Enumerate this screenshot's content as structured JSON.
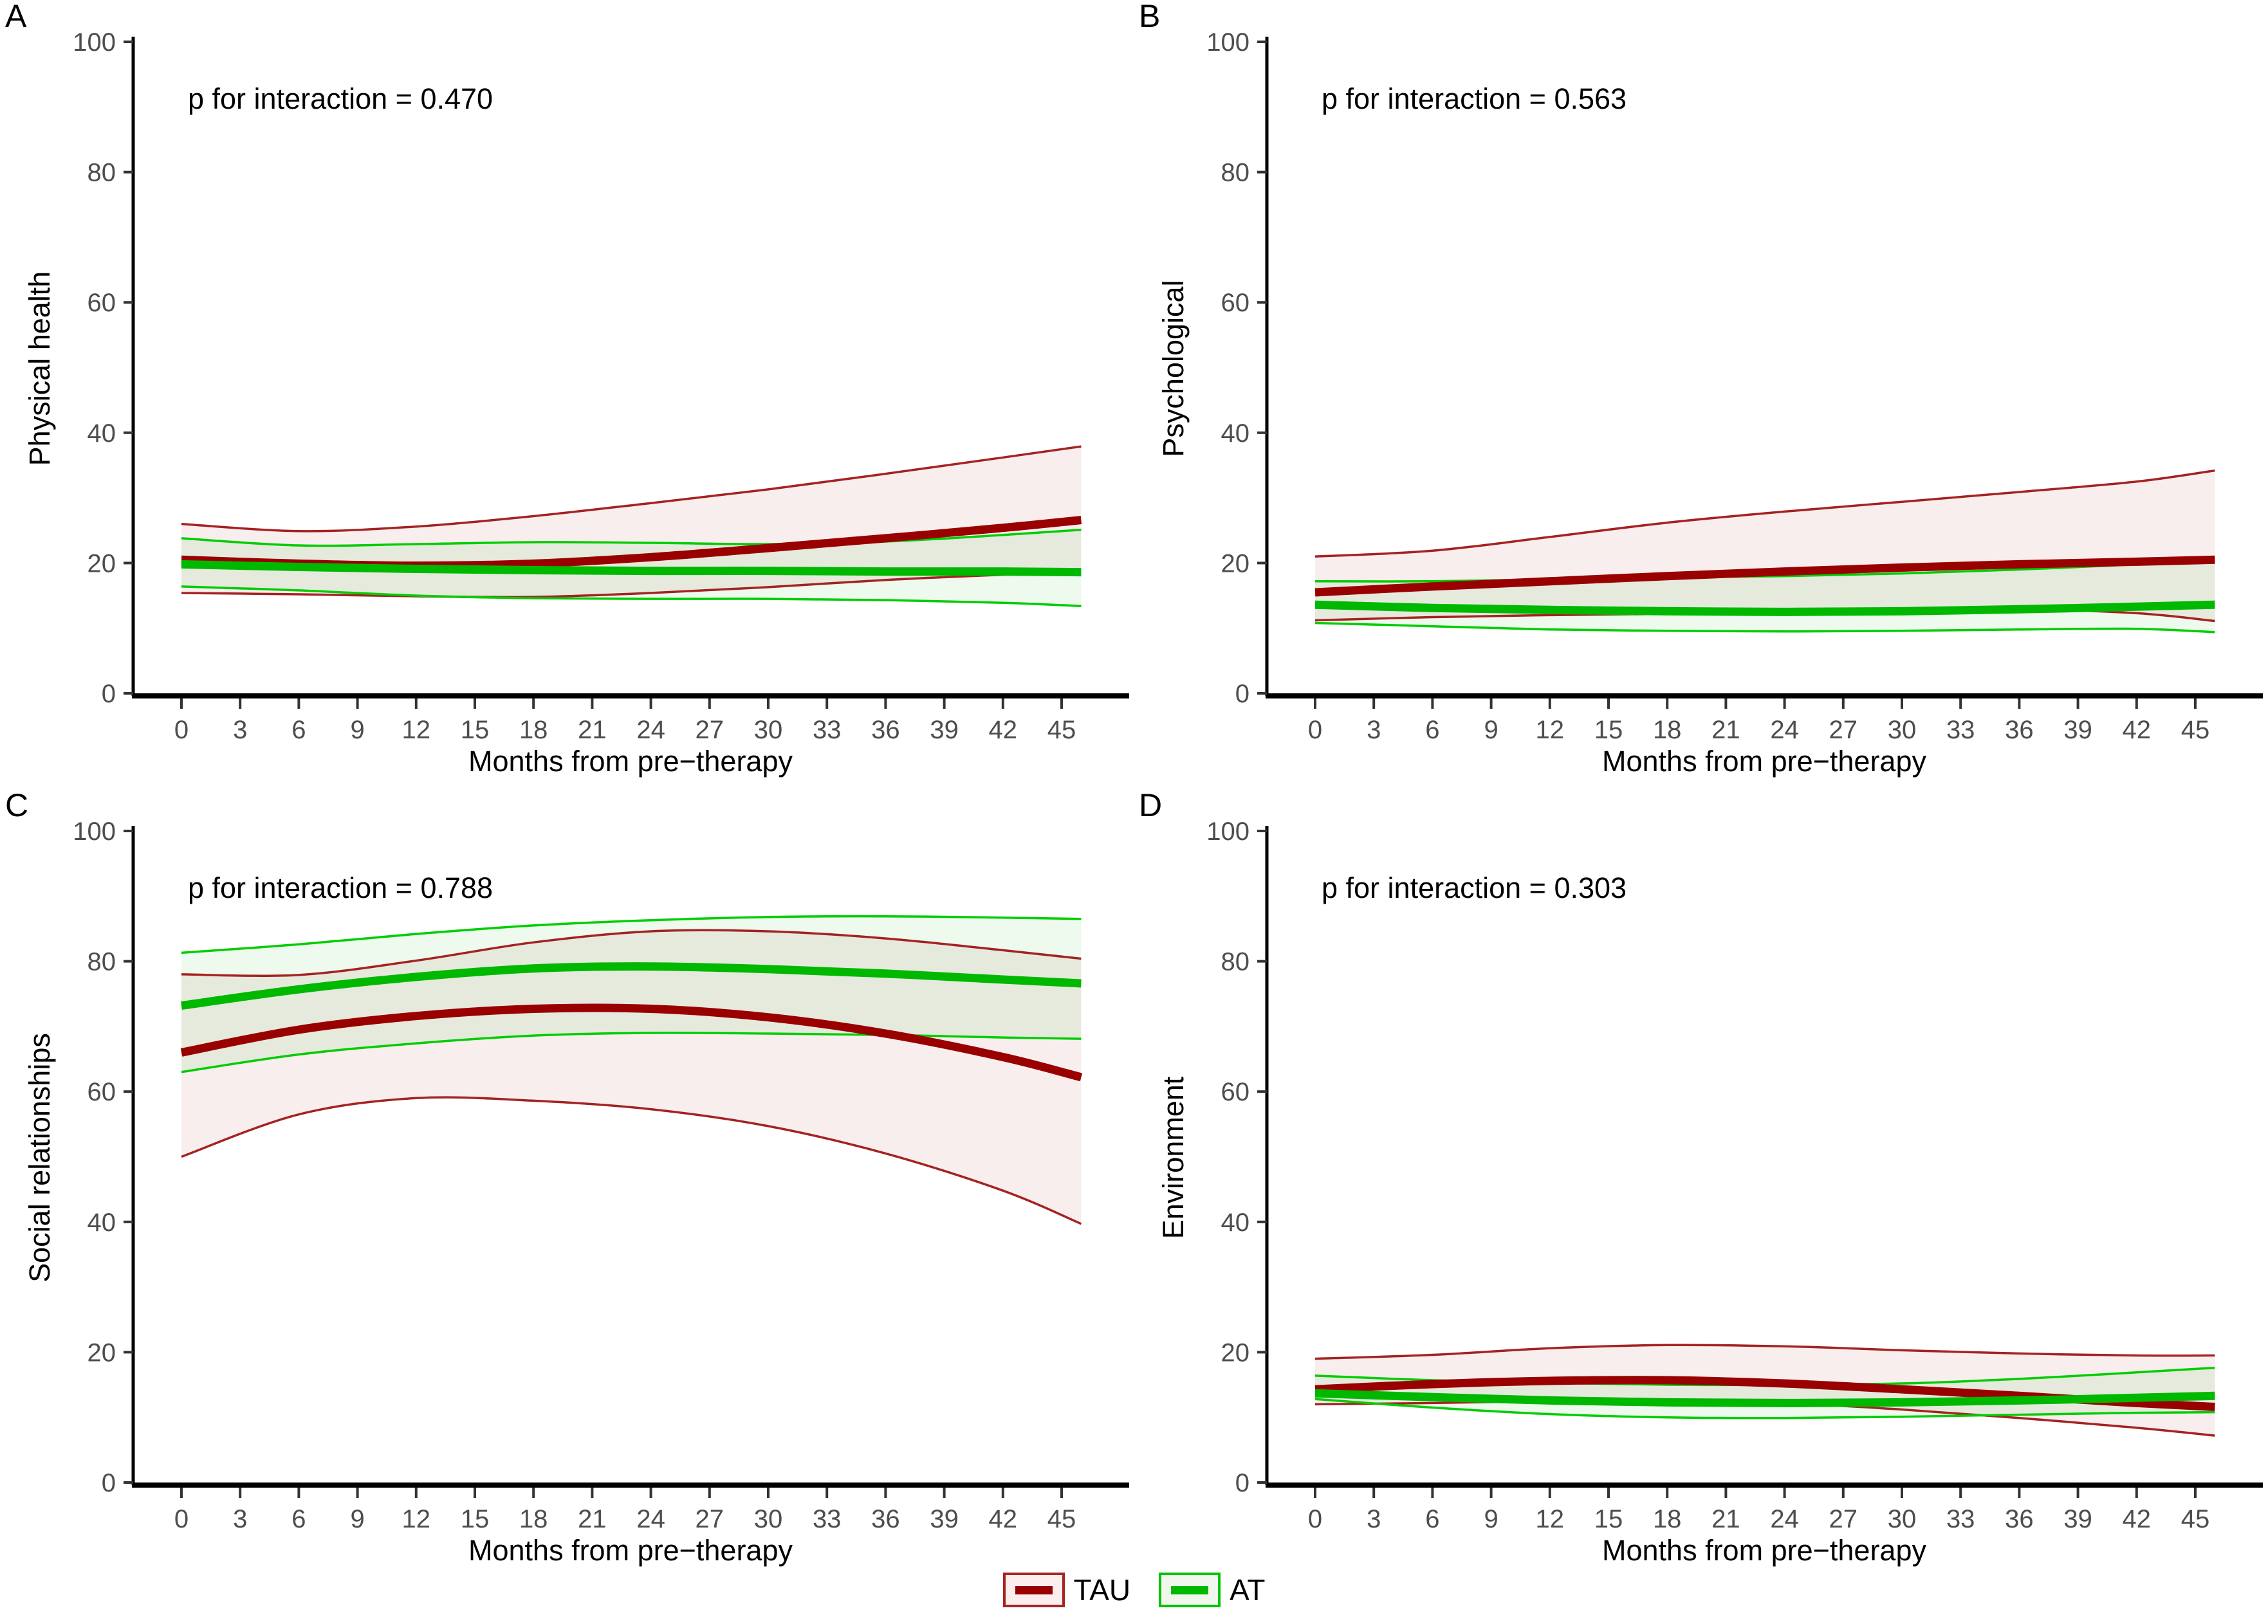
{
  "figure": {
    "x_title": "Months from pre−therapy",
    "x_ticks": [
      0,
      3,
      6,
      9,
      12,
      15,
      18,
      21,
      24,
      27,
      30,
      33,
      36,
      39,
      42,
      45
    ],
    "y_ticks": [
      0,
      20,
      40,
      60,
      80,
      100
    ],
    "legend": [
      {
        "label": "TAU",
        "key": "tau"
      },
      {
        "label": "AT",
        "key": "at"
      }
    ]
  },
  "colors": {
    "tau_line": "#990000",
    "tau_thin": "#a52222",
    "tau_fill": "rgba(153,0,0,0.065)",
    "at_line": "#00b800",
    "at_thin": "#00cd00",
    "at_fill": "rgba(0,180,0,0.07)",
    "axis": "#000000",
    "tick_text": "#4d4d4d"
  },
  "chart_data": [
    {
      "type": "line",
      "panel_label": "A",
      "ylabel": "Physical health",
      "p_text": "p for interaction = 0.470",
      "xlabel": "Months from pre−therapy",
      "xlim": [
        0,
        46
      ],
      "ylim": [
        0,
        100
      ],
      "x": [
        0,
        6,
        12,
        18,
        24,
        30,
        36,
        42,
        46
      ],
      "series": [
        {
          "name": "TAU",
          "center": [
            20.5,
            19.9,
            19.6,
            19.9,
            20.9,
            22.3,
            23.8,
            25.4,
            26.6
          ],
          "upper": [
            26.0,
            24.9,
            25.6,
            27.2,
            29.2,
            31.3,
            33.7,
            36.2,
            37.9
          ],
          "lower": [
            15.4,
            15.2,
            14.9,
            14.8,
            15.4,
            16.3,
            17.4,
            18.2,
            18.5
          ]
        },
        {
          "name": "AT",
          "center": [
            19.8,
            19.4,
            19.1,
            18.9,
            18.8,
            18.8,
            18.7,
            18.7,
            18.6
          ],
          "upper": [
            23.8,
            22.7,
            22.9,
            23.2,
            23.1,
            22.9,
            23.3,
            24.3,
            25.1
          ],
          "lower": [
            16.4,
            15.8,
            15.0,
            14.6,
            14.5,
            14.5,
            14.3,
            13.9,
            13.4
          ]
        }
      ]
    },
    {
      "type": "line",
      "panel_label": "B",
      "ylabel": "Psychological",
      "p_text": "p for interaction = 0.563",
      "xlabel": "Months from pre−therapy",
      "xlim": [
        0,
        46
      ],
      "ylim": [
        0,
        100
      ],
      "x": [
        0,
        6,
        12,
        18,
        24,
        30,
        36,
        42,
        46
      ],
      "series": [
        {
          "name": "TAU",
          "center": [
            15.5,
            16.4,
            17.2,
            18.0,
            18.7,
            19.3,
            19.8,
            20.2,
            20.5
          ],
          "upper": [
            21.0,
            21.9,
            24.0,
            26.2,
            27.9,
            29.4,
            30.9,
            32.5,
            34.2
          ],
          "lower": [
            11.2,
            11.7,
            12.0,
            12.2,
            12.4,
            12.7,
            12.9,
            12.3,
            11.1
          ]
        },
        {
          "name": "AT",
          "center": [
            13.6,
            13.1,
            12.8,
            12.6,
            12.5,
            12.6,
            12.9,
            13.3,
            13.6
          ],
          "upper": [
            17.2,
            17.2,
            17.5,
            17.8,
            18.0,
            18.4,
            19.0,
            19.8,
            20.3
          ],
          "lower": [
            10.8,
            10.3,
            9.8,
            9.6,
            9.5,
            9.6,
            9.8,
            9.9,
            9.4
          ]
        }
      ]
    },
    {
      "type": "line",
      "panel_label": "C",
      "ylabel": "Social relationships",
      "p_text": "p for interaction = 0.788",
      "xlabel": "Months from pre−therapy",
      "xlim": [
        0,
        46
      ],
      "ylim": [
        0,
        100
      ],
      "x": [
        0,
        6,
        12,
        18,
        24,
        30,
        36,
        42,
        46
      ],
      "series": [
        {
          "name": "TAU",
          "center": [
            66.0,
            69.5,
            71.6,
            72.7,
            72.7,
            71.4,
            68.9,
            65.3,
            62.2
          ],
          "upper": [
            78.0,
            77.9,
            80.1,
            82.9,
            84.6,
            84.6,
            83.5,
            81.7,
            80.4
          ],
          "lower": [
            50.0,
            56.5,
            59.0,
            58.6,
            57.3,
            54.7,
            50.5,
            44.8,
            39.7
          ]
        },
        {
          "name": "AT",
          "center": [
            73.2,
            75.7,
            77.6,
            78.9,
            79.2,
            78.8,
            78.1,
            77.2,
            76.6
          ],
          "upper": [
            81.3,
            82.6,
            84.2,
            85.5,
            86.3,
            86.8,
            86.9,
            86.7,
            86.5
          ],
          "lower": [
            63.0,
            65.7,
            67.4,
            68.6,
            69.0,
            68.9,
            68.7,
            68.3,
            68.1
          ]
        }
      ]
    },
    {
      "type": "line",
      "panel_label": "D",
      "ylabel": "Environment",
      "p_text": "p for interaction = 0.303",
      "xlabel": "Months from pre−therapy",
      "xlim": [
        0,
        46
      ],
      "ylim": [
        0,
        100
      ],
      "x": [
        0,
        6,
        12,
        18,
        24,
        30,
        36,
        42,
        46
      ],
      "series": [
        {
          "name": "TAU",
          "center": [
            14.3,
            15.1,
            15.6,
            15.7,
            15.2,
            14.3,
            13.3,
            12.2,
            11.6
          ],
          "upper": [
            19.0,
            19.6,
            20.6,
            21.1,
            20.9,
            20.3,
            19.8,
            19.5,
            19.5
          ],
          "lower": [
            12.0,
            12.2,
            12.5,
            12.6,
            12.2,
            11.2,
            9.9,
            8.4,
            7.2
          ]
        },
        {
          "name": "AT",
          "center": [
            13.7,
            13.1,
            12.6,
            12.3,
            12.2,
            12.3,
            12.6,
            13.0,
            13.3
          ],
          "upper": [
            16.4,
            15.7,
            15.3,
            15.0,
            15.0,
            15.2,
            15.9,
            16.9,
            17.6
          ],
          "lower": [
            12.8,
            11.5,
            10.5,
            10.0,
            9.9,
            10.1,
            10.4,
            10.7,
            10.8
          ]
        }
      ]
    }
  ]
}
